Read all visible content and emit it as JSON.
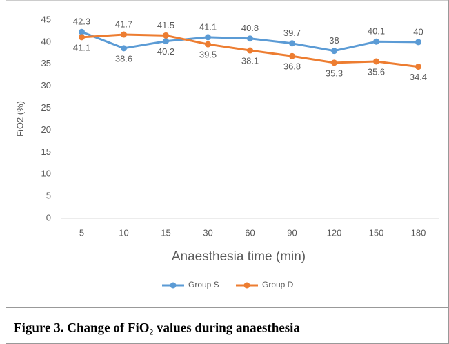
{
  "chart_data": {
    "type": "line",
    "caption": "Figure 3. Change of FiO₂ values during anaesthesia",
    "xlabel": "Anaesthesia time (min)",
    "ylabel": "FiO2 (%)",
    "categories": [
      5,
      10,
      15,
      30,
      60,
      90,
      120,
      150,
      180
    ],
    "series": [
      {
        "name": "Group S",
        "color": "#5b9bd5",
        "values": [
          42.3,
          38.6,
          40.2,
          41.1,
          40.8,
          39.7,
          38,
          40.1,
          40
        ]
      },
      {
        "name": "Group D",
        "color": "#ed7d31",
        "values": [
          41.1,
          41.7,
          41.5,
          39.5,
          38.1,
          36.8,
          35.3,
          35.6,
          34.4
        ]
      }
    ],
    "ylim": [
      0,
      45
    ],
    "yticks": [
      0,
      5,
      10,
      15,
      20,
      25,
      30,
      35,
      40,
      45
    ],
    "grid": false,
    "legend": "bottom"
  }
}
